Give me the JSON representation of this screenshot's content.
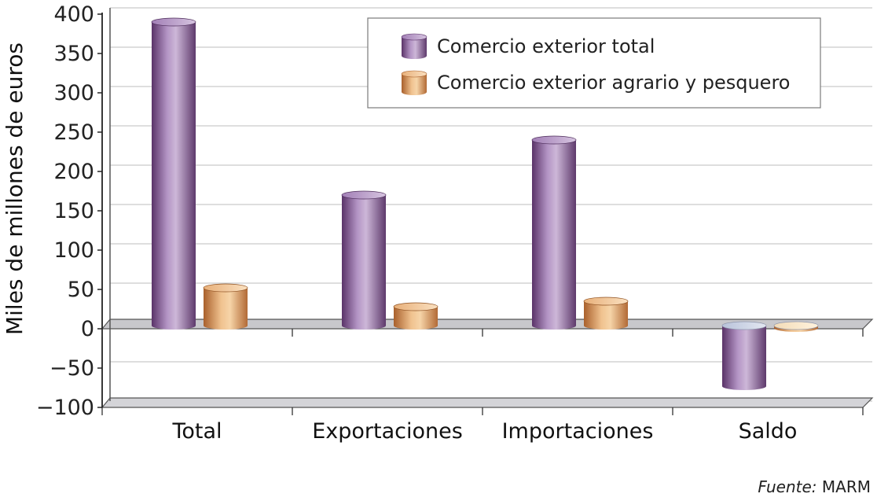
{
  "chart_data": {
    "type": "bar",
    "categories": [
      "Total",
      "Exportaciones",
      "Importaciones",
      "Saldo"
    ],
    "series": [
      {
        "name": "Comercio exterior total",
        "values": [
          386,
          166,
          236,
          -77
        ],
        "color": "#8a5a9e"
      },
      {
        "name": "Comercio exterior agrario y pesquero",
        "values": [
          48,
          24,
          31,
          -3
        ],
        "color": "#d8955a"
      }
    ],
    "title": "",
    "xlabel": "",
    "ylabel": "Miles de millones de euros",
    "ylim": [
      -100,
      400
    ],
    "yticks": [
      400,
      350,
      300,
      250,
      200,
      150,
      100,
      50,
      0,
      -50,
      -100
    ],
    "ytick_labels": [
      "400",
      "350",
      "300",
      "250",
      "200",
      "150",
      "100",
      "50",
      "0",
      "−50",
      "−100"
    ],
    "grid": true,
    "legend_position": "top-right",
    "style": "3d-cylinder"
  },
  "source": {
    "prefix": "Fuente:",
    "text": "MARM"
  }
}
